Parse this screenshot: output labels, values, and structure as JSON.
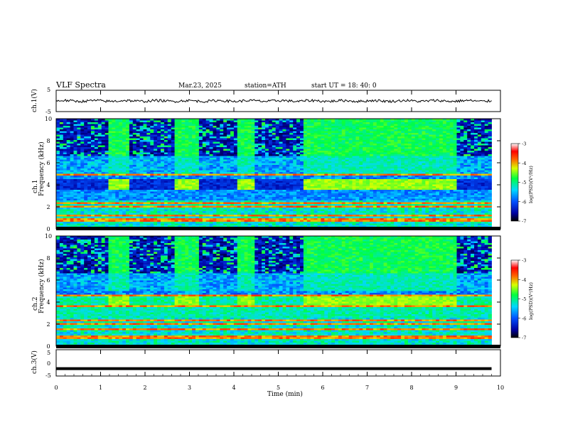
{
  "header": {
    "title": "VLF  Spectra",
    "date": "Mar.23, 2025",
    "station": "station=ATH",
    "start": "start  UT  =    18: 40: 0"
  },
  "chart_data": [
    {
      "type": "line",
      "ylabel": "ch.1(V)",
      "ylim": [
        -5,
        5
      ],
      "yticks": [
        5,
        -5
      ],
      "xlim": [
        0,
        10
      ],
      "waveform_level": 0.0,
      "waveform_amplitude_approx": 0.6
    },
    {
      "type": "heatmap",
      "ylabel": "ch.1\nFrequency (kHz)",
      "ylim": [
        0,
        10
      ],
      "yticks": [
        0,
        2,
        4,
        6,
        8,
        10
      ],
      "xlim": [
        0,
        10
      ],
      "colorbar": {
        "label": "log(PSD)(V²/Hz)",
        "range": [
          -7,
          -3
        ],
        "ticks": [
          "-3",
          "-4",
          "-5",
          "-6",
          "-7"
        ]
      },
      "segments_min": [
        {
          "start": 0.0,
          "end": 1.2,
          "state": "burst"
        },
        {
          "start": 1.2,
          "end": 1.65,
          "state": "tone"
        },
        {
          "start": 1.65,
          "end": 2.65,
          "state": "burst"
        },
        {
          "start": 2.65,
          "end": 3.2,
          "state": "tone"
        },
        {
          "start": 3.2,
          "end": 4.1,
          "state": "burst"
        },
        {
          "start": 4.1,
          "end": 4.45,
          "state": "tone"
        },
        {
          "start": 4.45,
          "end": 5.55,
          "state": "burst"
        },
        {
          "start": 5.55,
          "end": 9.05,
          "state": "tone"
        },
        {
          "start": 9.05,
          "end": 9.8,
          "state": "burst"
        }
      ],
      "tone_khz": 4.0,
      "lines_khz": [
        0.8,
        1.2,
        2.0,
        2.3,
        4.9
      ]
    },
    {
      "type": "heatmap",
      "ylabel": "ch.2\nFrequency (kHz)",
      "ylim": [
        0,
        10
      ],
      "yticks": [
        0,
        2,
        4,
        6,
        8,
        10
      ],
      "xlim": [
        0,
        10
      ],
      "colorbar": {
        "label": "log(PSD)(V²/Hz)",
        "range": [
          -7,
          -3
        ],
        "ticks": [
          "-3",
          "-4",
          "-5",
          "-6",
          "-7"
        ]
      },
      "segments_min": [
        {
          "start": 0.0,
          "end": 1.2,
          "state": "burst"
        },
        {
          "start": 1.2,
          "end": 1.65,
          "state": "tone"
        },
        {
          "start": 1.65,
          "end": 2.65,
          "state": "burst"
        },
        {
          "start": 2.65,
          "end": 3.2,
          "state": "tone"
        },
        {
          "start": 3.2,
          "end": 4.1,
          "state": "burst"
        },
        {
          "start": 4.1,
          "end": 4.45,
          "state": "tone"
        },
        {
          "start": 4.45,
          "end": 5.55,
          "state": "burst"
        },
        {
          "start": 5.55,
          "end": 9.05,
          "state": "tone"
        },
        {
          "start": 9.05,
          "end": 9.8,
          "state": "burst"
        }
      ],
      "tone_khz": 4.0,
      "lines_khz": [
        0.8,
        1.6,
        2.0,
        2.3,
        3.6,
        4.6
      ]
    },
    {
      "type": "line",
      "ylabel": "ch.3(V)",
      "ylim": [
        -5,
        5
      ],
      "yticks": [
        5,
        0,
        -5
      ],
      "xlim": [
        0,
        10
      ],
      "xlabel": "Time  (min)",
      "xticks": [
        0,
        1,
        2,
        3,
        4,
        5,
        6,
        7,
        8,
        9,
        10
      ],
      "waveform_level": -2.2
    }
  ]
}
